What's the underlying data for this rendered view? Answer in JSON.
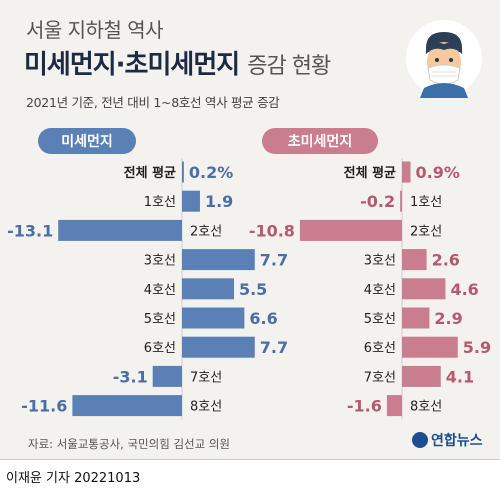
{
  "header": {
    "title_line1": "서울 지하철 역사",
    "title_line2_bold": "미세먼지·초미세먼지",
    "title_line2_light": "증감 현황",
    "subtitle": "2021년 기준, 전년 대비 1~8호선 역사 평균 증감"
  },
  "panels": {
    "left_label": "미세먼지",
    "right_label": "초미세먼지"
  },
  "colors": {
    "pm10": "#5b80b5",
    "pm10_text": "#4a6ea5",
    "pm25": "#c97d8e",
    "pm25_text": "#b5596f"
  },
  "chart_data": [
    {
      "type": "bar",
      "orientation": "horizontal",
      "series": [
        {
          "name": "미세먼지",
          "values": [
            0.2,
            1.9,
            -13.1,
            7.7,
            5.5,
            6.6,
            7.7,
            -3.1,
            -11.6
          ]
        }
      ],
      "categories": [
        "전체 평균",
        "1호선",
        "2호선",
        "3호선",
        "4호선",
        "5호선",
        "6호선",
        "7호선",
        "8호선"
      ],
      "labels": [
        "0.2%",
        "1.9",
        "-13.1",
        "7.7",
        "5.5",
        "6.6",
        "7.7",
        "-3.1",
        "-11.6"
      ]
    },
    {
      "type": "bar",
      "orientation": "horizontal",
      "series": [
        {
          "name": "초미세먼지",
          "values": [
            0.9,
            -0.2,
            -10.8,
            2.6,
            4.6,
            2.9,
            5.9,
            4.1,
            -1.6
          ]
        }
      ],
      "categories": [
        "전체 평균",
        "1호선",
        "2호선",
        "3호선",
        "4호선",
        "5호선",
        "6호선",
        "7호선",
        "8호선"
      ],
      "labels": [
        "0.9%",
        "-0.2",
        "-10.8",
        "2.6",
        "4.6",
        "2.9",
        "5.9",
        "4.1",
        "-1.6"
      ]
    }
  ],
  "footer": {
    "source": "자료: 서울교통공사, 국민의힘 김선교 의원",
    "logo_text": "연합뉴스",
    "reporter": "이재윤 기자  20221013"
  }
}
